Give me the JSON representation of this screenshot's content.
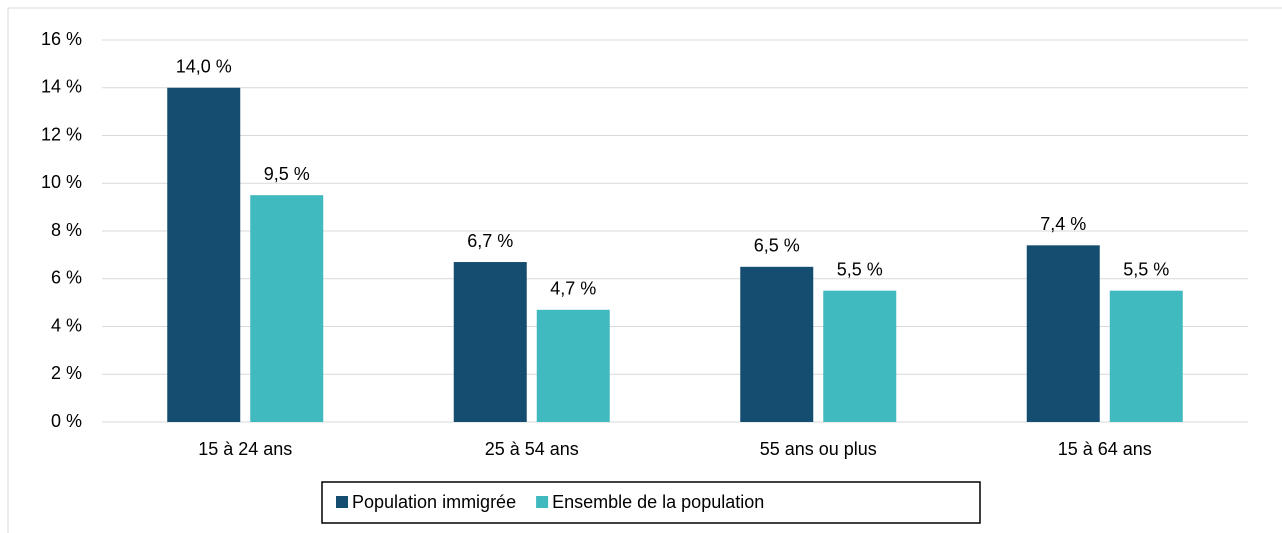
{
  "chart_data": {
    "type": "bar",
    "categories": [
      "15 à 24 ans",
      "25 à 54 ans",
      "55 ans ou plus",
      "15 à 64 ans"
    ],
    "series": [
      {
        "name": "Population immigrée",
        "color": "#154d70",
        "values": [
          14.0,
          6.7,
          6.5,
          7.4
        ],
        "value_labels": [
          "14,0 %",
          "6,7 %",
          "6,5 %",
          "7,4 %"
        ]
      },
      {
        "name": "Ensemble de la population",
        "color": "#40b9bf",
        "values": [
          9.5,
          4.7,
          5.5,
          5.5
        ],
        "value_labels": [
          "9,5 %",
          "4,7 %",
          "5,5 %",
          "5,5 %"
        ]
      }
    ],
    "ylim": [
      0,
      16
    ],
    "yticks": [
      {
        "value": 0,
        "label": "0 %"
      },
      {
        "value": 2,
        "label": "2 %"
      },
      {
        "value": 4,
        "label": "4 %"
      },
      {
        "value": 6,
        "label": "6 %"
      },
      {
        "value": 8,
        "label": "8 %"
      },
      {
        "value": 10,
        "label": "10 %"
      },
      {
        "value": 12,
        "label": "12 %"
      },
      {
        "value": 14,
        "label": "14 %"
      },
      {
        "value": 16,
        "label": "16 %"
      }
    ],
    "grid": true,
    "legend": "bottom"
  }
}
